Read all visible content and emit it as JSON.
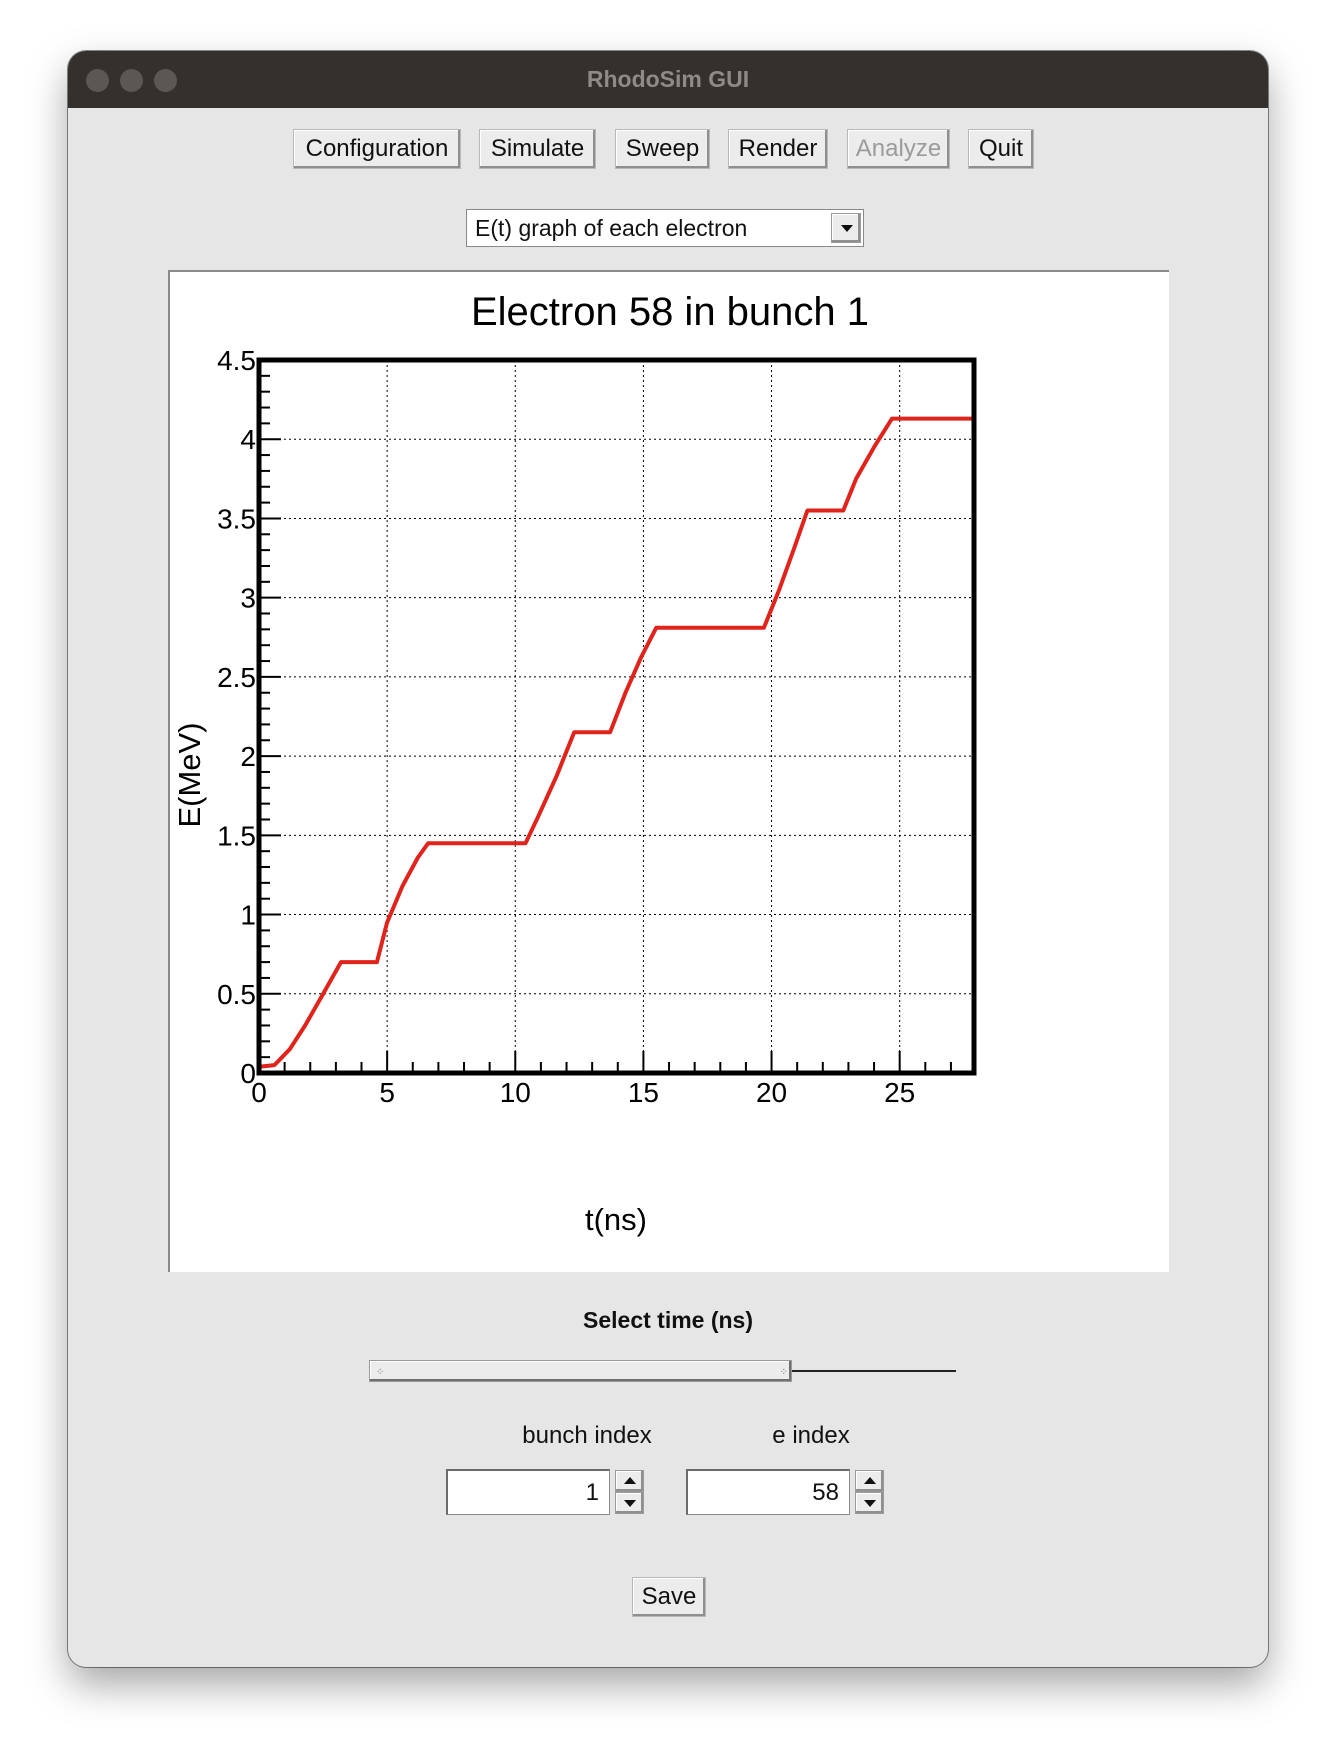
{
  "window": {
    "title": "RhodoSim GUI"
  },
  "toolbar": {
    "buttons": [
      {
        "label": "Configuration",
        "enabled": true
      },
      {
        "label": "Simulate",
        "enabled": true
      },
      {
        "label": "Sweep",
        "enabled": true
      },
      {
        "label": "Render",
        "enabled": true
      },
      {
        "label": "Analyze",
        "enabled": false
      },
      {
        "label": "Quit",
        "enabled": true
      }
    ]
  },
  "view_select": {
    "selected": "E(t) graph of each electron"
  },
  "chart_data": {
    "type": "line",
    "title": "Electron 58 in bunch 1",
    "xlabel": "t(ns)",
    "ylabel": "E(MeV)",
    "xlim": [
      0,
      27.9
    ],
    "ylim": [
      0,
      4.5
    ],
    "xticks": [
      "0",
      "5",
      "10",
      "15",
      "20",
      "25"
    ],
    "yticks": [
      "0",
      "0.5",
      "1",
      "1.5",
      "2",
      "2.5",
      "3",
      "3.5",
      "4",
      "4.5"
    ],
    "grid": true,
    "series": [
      {
        "color": "#e0231b",
        "x": [
          0,
          0.6,
          1.2,
          1.8,
          2.4,
          3.2,
          4.6,
          5.0,
          5.6,
          6.2,
          6.6,
          10.4,
          10.9,
          11.6,
          12.3,
          13.7,
          14.3,
          14.9,
          15.5,
          19.7,
          20.3,
          20.9,
          21.4,
          22.8,
          23.3,
          24.0,
          24.7,
          27.9
        ],
        "y": [
          0.04,
          0.05,
          0.15,
          0.3,
          0.47,
          0.7,
          0.7,
          0.95,
          1.18,
          1.36,
          1.45,
          1.45,
          1.62,
          1.87,
          2.15,
          2.15,
          2.4,
          2.62,
          2.81,
          2.81,
          3.05,
          3.32,
          3.55,
          3.55,
          3.75,
          3.95,
          4.13,
          4.13
        ]
      }
    ]
  },
  "slider": {
    "label": "Select time (ns)",
    "value_fraction": 0.72
  },
  "bunch_index": {
    "label": "bunch index",
    "value": "1"
  },
  "e_index": {
    "label": "e index",
    "value": "58"
  },
  "save_button": {
    "label": "Save"
  }
}
